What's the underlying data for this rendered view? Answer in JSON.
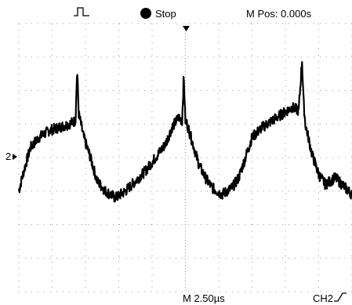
{
  "header": {
    "trigger_icon": "pulse-trigger-icon",
    "run_state_icon": "filled-circle-icon",
    "run_state": "Stop",
    "position_label": "M Pos: 0.000s"
  },
  "footer": {
    "timebase": "M 2.50µs",
    "trigger_source": "CH2",
    "trigger_slope_icon": "rising-edge-icon"
  },
  "channel_marker": "2",
  "chart_data": {
    "type": "line",
    "grid": true,
    "x_divisions": 10,
    "y_divisions": 8,
    "xlabel": "",
    "ylabel": "",
    "xlim": [
      0,
      10
    ],
    "ylim": [
      -4,
      4
    ],
    "series": [
      {
        "x": [
          0,
          0.15,
          0.35,
          0.6,
          0.9,
          1.2,
          1.5,
          1.7,
          1.75,
          1.8,
          1.95,
          2.15,
          2.35,
          2.6,
          2.9,
          3.2,
          3.5,
          3.8,
          4.1,
          4.4,
          4.6,
          4.8,
          4.9,
          4.95,
          5.0,
          5.05,
          5.2,
          5.4,
          5.6,
          5.8,
          6.1,
          6.4,
          6.6,
          6.8,
          7.0,
          7.3,
          7.6,
          7.9,
          8.2,
          8.4,
          8.5,
          8.55,
          8.6,
          8.8,
          9.0,
          9.2,
          9.5,
          9.8,
          10
        ],
        "y": [
          -1.0,
          -0.4,
          0.3,
          0.6,
          0.8,
          0.9,
          1.0,
          1.1,
          2.6,
          1.3,
          0.6,
          0.0,
          -0.7,
          -1.0,
          -1.2,
          -1.0,
          -0.7,
          -0.4,
          0.0,
          0.4,
          0.9,
          1.2,
          1.1,
          2.4,
          1.1,
          1.0,
          0.5,
          -0.2,
          -0.6,
          -0.9,
          -1.1,
          -0.9,
          -0.6,
          0.0,
          0.6,
          0.9,
          1.1,
          1.3,
          1.5,
          1.4,
          2.9,
          1.6,
          1.0,
          0.1,
          -0.5,
          -0.8,
          -0.6,
          -0.9,
          -1.1
        ]
      }
    ]
  }
}
